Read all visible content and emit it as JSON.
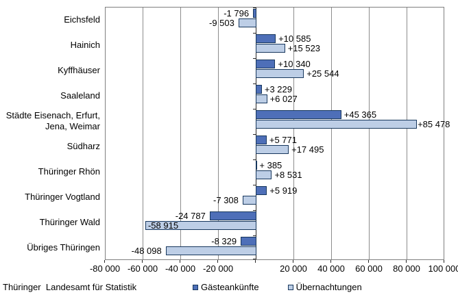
{
  "footer": {
    "source": "Thüringer  Landesamt für Statistik"
  },
  "chart_data": {
    "type": "bar",
    "orientation": "horizontal",
    "title": "",
    "xlabel": "",
    "ylabel": "",
    "xlim": [
      -80000,
      100000
    ],
    "grid": true,
    "legend_position": "bottom",
    "bar_border_color": "#16365C",
    "categories": [
      "Eichsfeld",
      "Hainich",
      "Kyffhäuser",
      "Saaleland",
      "Städte Eisenach, Erfurt,\nJena, Weimar",
      "Südharz",
      "Thüringer Rhön",
      "Thüringer Vogtland",
      "Thüringer Wald",
      "Übriges Thüringen"
    ],
    "x_ticks": [
      {
        "value": -80000,
        "label": "-80 000"
      },
      {
        "value": -60000,
        "label": "-60 000"
      },
      {
        "value": -40000,
        "label": "-40 000"
      },
      {
        "value": -20000,
        "label": "-20 000"
      },
      {
        "value": 0,
        "label": ""
      },
      {
        "value": 20000,
        "label": "20 000"
      },
      {
        "value": 40000,
        "label": "40 000"
      },
      {
        "value": 60000,
        "label": "60 000"
      },
      {
        "value": 80000,
        "label": "80 000"
      },
      {
        "value": 100000,
        "label": "100 000"
      }
    ],
    "series": [
      {
        "name": "Gästeankünfte",
        "color": "#4E6FB8",
        "values": [
          -1796,
          10585,
          10340,
          3229,
          45365,
          5771,
          385,
          5919,
          -24787,
          -8329
        ],
        "labels": [
          "-1 796",
          "+10 585",
          "+10 340",
          "+3 229",
          "+45 365",
          "+5 771",
          "+ 385",
          "+5 919",
          "-24 787",
          "-8 329"
        ]
      },
      {
        "name": "Übernachtungen",
        "color": "#BDCEE6",
        "values": [
          -9503,
          15523,
          25544,
          6027,
          85478,
          17495,
          8531,
          -7308,
          -58915,
          -48098
        ],
        "labels": [
          "-9 503",
          "+15 523",
          "+25 544",
          "+6 027",
          "+85 478",
          "+17 495",
          "+8 531",
          "-7 308",
          "-58 915",
          "-48 098"
        ],
        "label_overrides": {
          "4": "bar-end",
          "8": "inside-start"
        }
      }
    ]
  }
}
